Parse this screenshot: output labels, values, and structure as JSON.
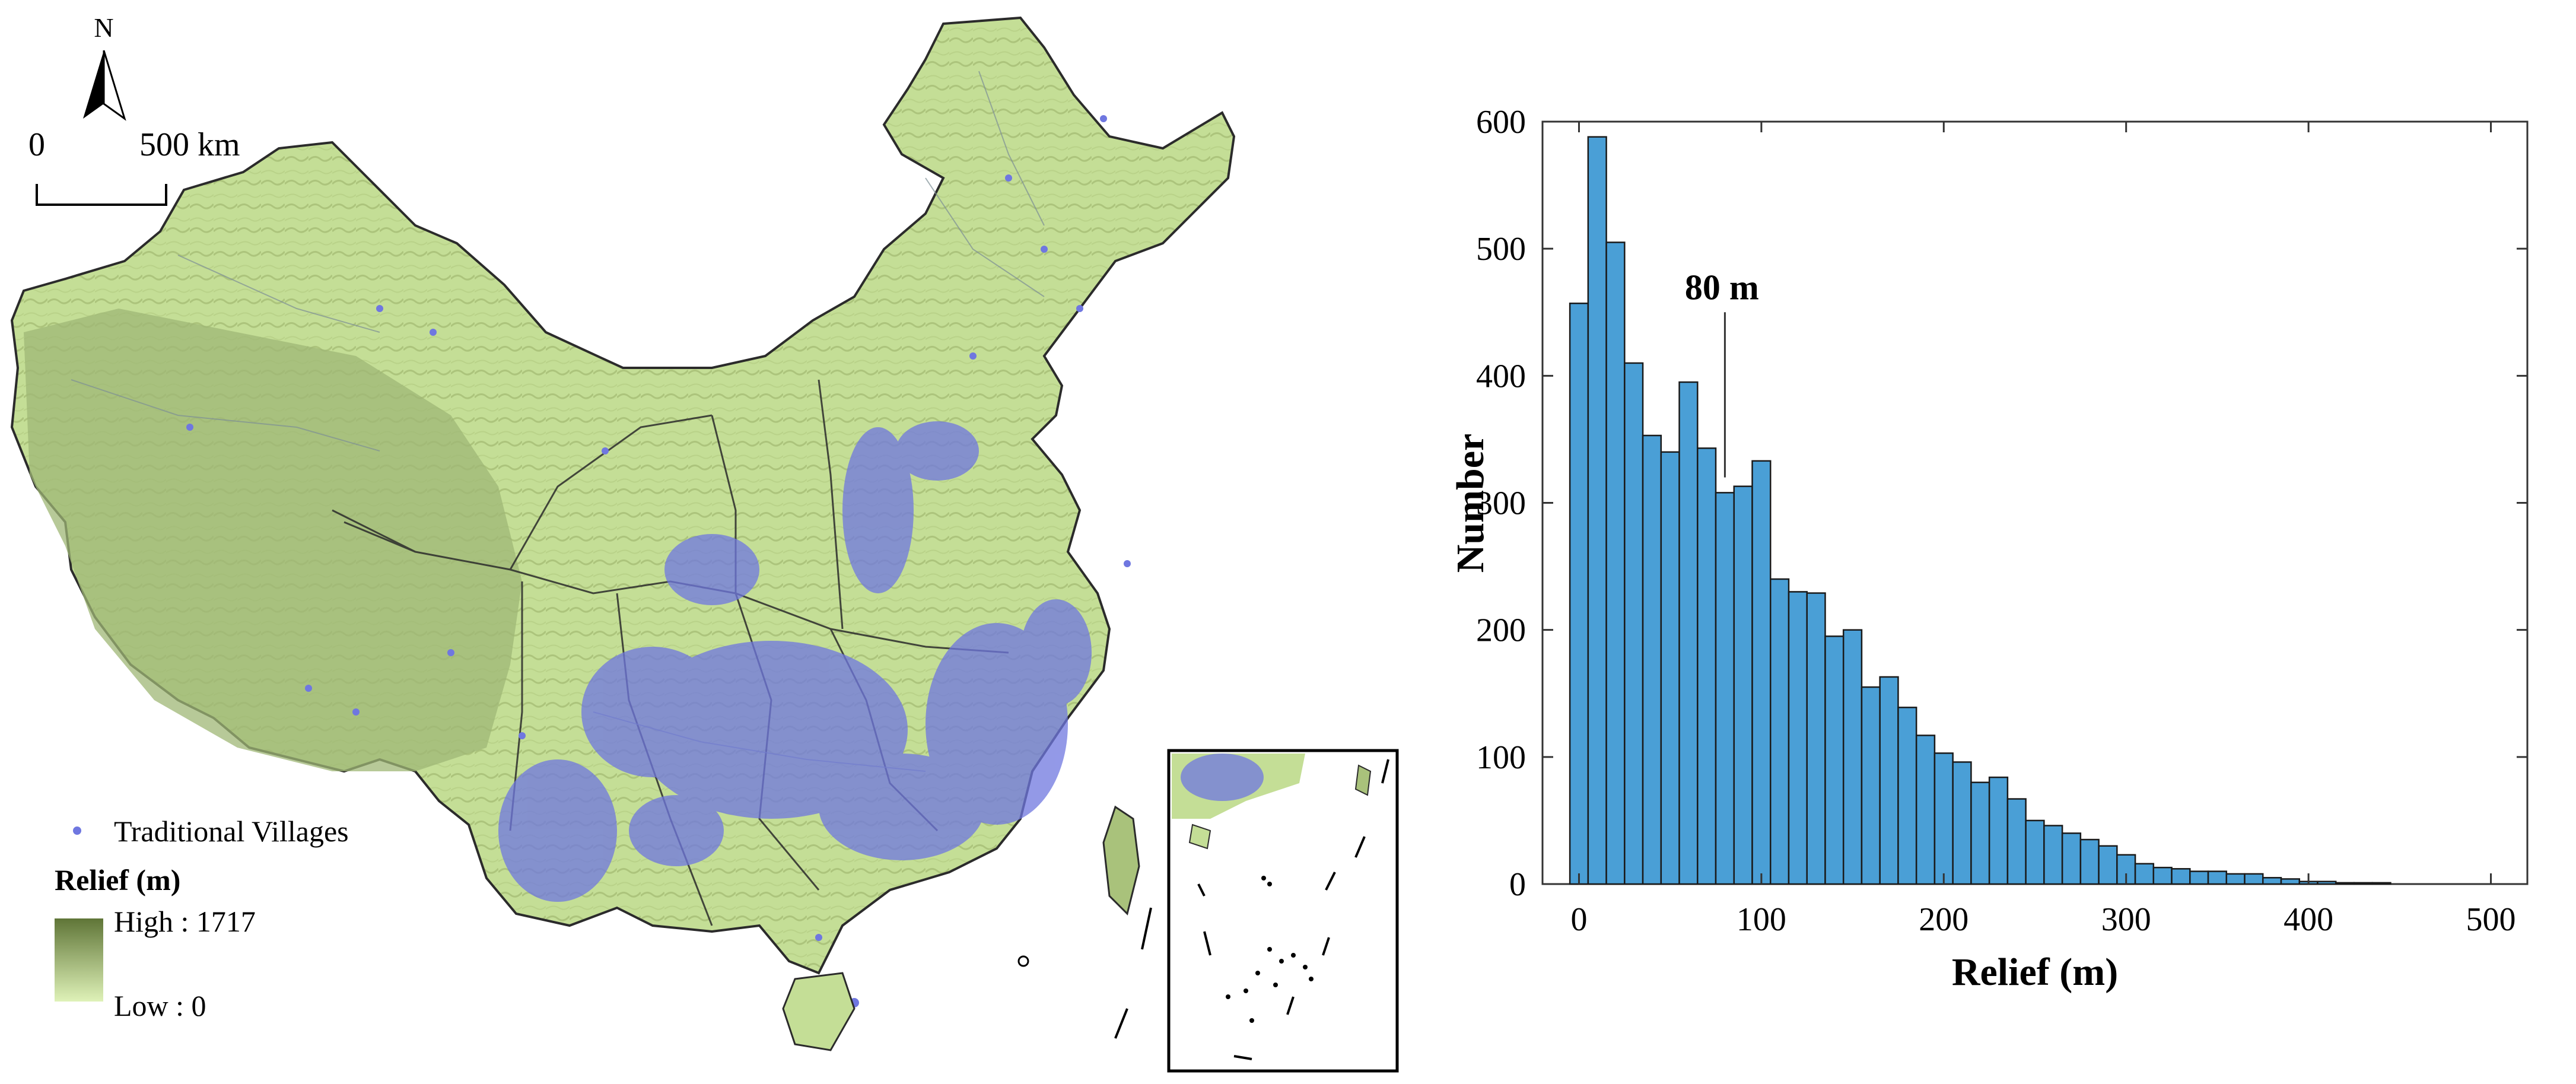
{
  "map": {
    "north_label": "N",
    "scale_start": "0",
    "scale_end": "500 km",
    "legend_villages": "Traditional Villages",
    "legend_relief_title": "Relief (m)",
    "legend_high": "High : 1717",
    "legend_low": "Low : 0",
    "colors": {
      "relief_high": "#5f7537",
      "relief_low": "#dff2b8",
      "village_dot": "#6f77e0",
      "border": "#2b2b2b"
    }
  },
  "chart_data": {
    "type": "bar",
    "xlabel": "Relief (m)",
    "ylabel": "Number",
    "xlim": [
      -20,
      520
    ],
    "ylim": [
      0,
      600
    ],
    "xticks": [
      0,
      100,
      200,
      300,
      400,
      500
    ],
    "yticks": [
      0,
      100,
      200,
      300,
      400,
      500,
      600
    ],
    "bin_width": 10,
    "bin_starts": [
      0,
      10,
      20,
      30,
      40,
      50,
      60,
      70,
      80,
      90,
      100,
      110,
      120,
      130,
      140,
      150,
      160,
      170,
      180,
      190,
      200,
      210,
      220,
      230,
      240,
      250,
      260,
      270,
      280,
      290,
      300,
      310,
      320,
      330,
      340,
      350,
      360,
      370,
      380,
      390,
      400,
      410,
      420,
      430,
      440
    ],
    "values": [
      457,
      588,
      505,
      410,
      353,
      340,
      395,
      343,
      308,
      313,
      333,
      240,
      230,
      229,
      195,
      200,
      155,
      163,
      139,
      117,
      103,
      96,
      80,
      84,
      67,
      50,
      46,
      40,
      35,
      30,
      23,
      16,
      13,
      12,
      10,
      10,
      8,
      8,
      5,
      4,
      2,
      2,
      1,
      1,
      1
    ],
    "bar_color": "#4a9fd6",
    "bar_edge_color": "#1a1a1a",
    "annotation": {
      "text": "80 m",
      "x": 80
    }
  }
}
